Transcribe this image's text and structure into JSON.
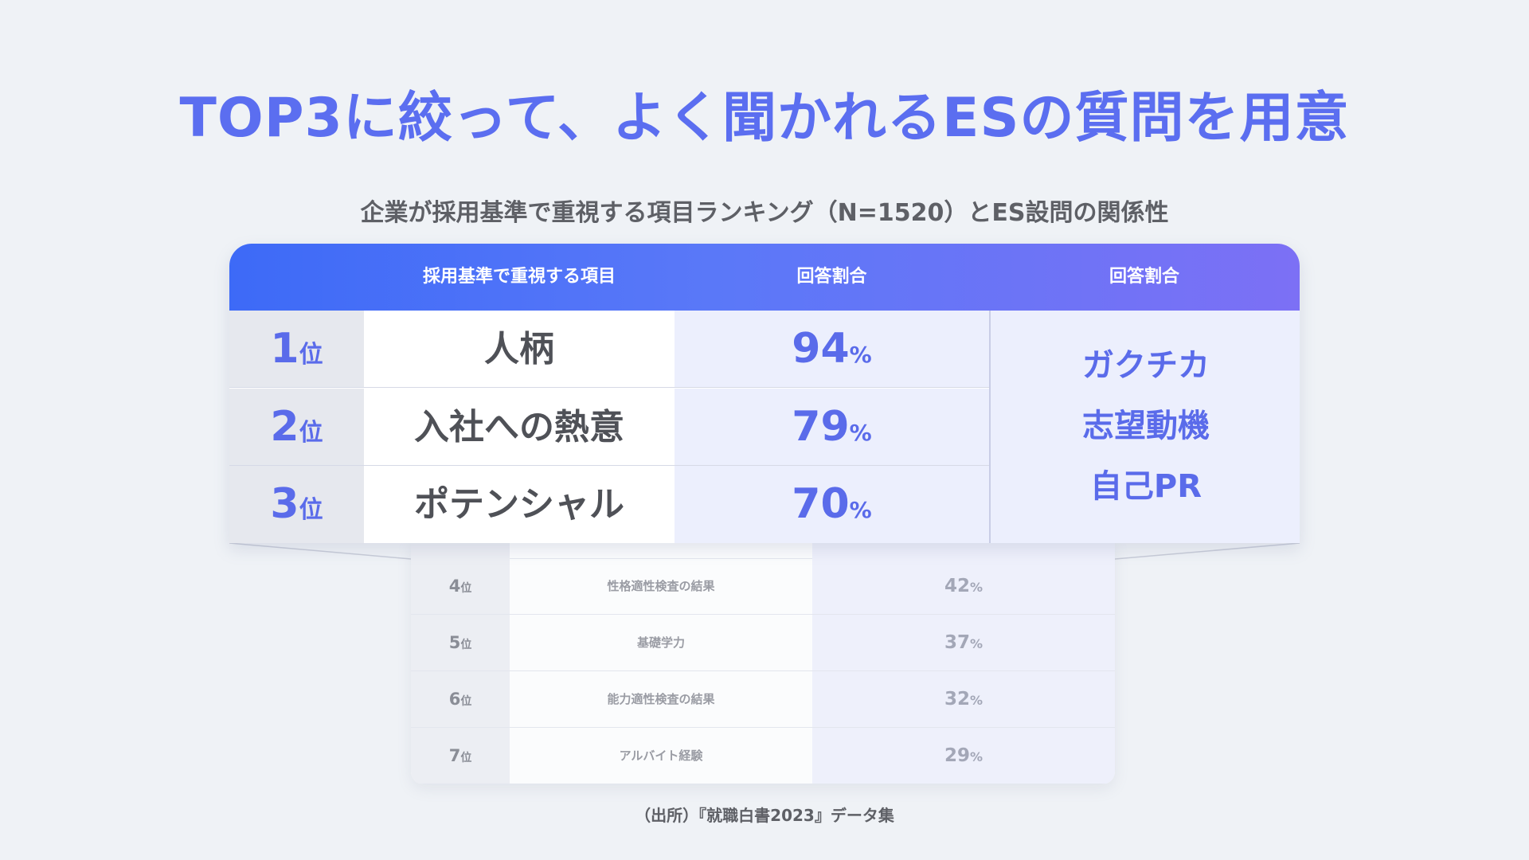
{
  "title": "TOP3に絞って、よく聞かれるESの質問を用意",
  "subtitle": "企業が採用基準で重視する項目ランキング（N=1520）とES設問の関係性",
  "source": "（出所）『就職白書2023』データ集",
  "colors": {
    "accent": "#5b6ef0",
    "header_start": "#3d6af7",
    "header_end": "#7c70f5",
    "background": "#eff2f6"
  },
  "table": {
    "headers": [
      "",
      "採用基準で重視する項目",
      "回答割合",
      "回答割合"
    ],
    "rank_unit": "位",
    "percent_unit": "%",
    "es_items": [
      "ガクチカ",
      "志望動機",
      "自己PR"
    ]
  },
  "chart_data": {
    "type": "table",
    "title": "企業が採用基準で重視する項目ランキング（N=1520）とES設問の関係性",
    "columns": [
      "採用基準で重視する項目",
      "回答割合"
    ],
    "rows": [
      {
        "rank": "1",
        "item": "人柄",
        "value": "94",
        "top": true
      },
      {
        "rank": "2",
        "item": "入社への熱意",
        "value": "79",
        "top": true
      },
      {
        "rank": "3",
        "item": "ポテンシャル",
        "value": "70",
        "top": true
      },
      {
        "rank": "4",
        "item": "性格適性検査の結果",
        "value": "42",
        "top": false
      },
      {
        "rank": "5",
        "item": "基礎学力",
        "value": "37",
        "top": false
      },
      {
        "rank": "6",
        "item": "能力適性検査の結果",
        "value": "32",
        "top": false
      },
      {
        "rank": "7",
        "item": "アルバイト経験",
        "value": "29",
        "top": false
      }
    ]
  }
}
